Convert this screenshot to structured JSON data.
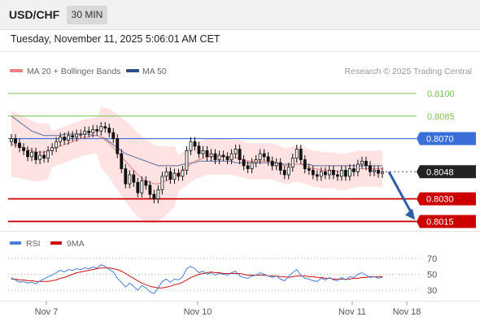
{
  "header": {
    "symbol": "USD/CHF",
    "timeframe": "30 MIN"
  },
  "datetime": "Tuesday, November 11, 2025 5:06:01 AM CET",
  "legend": {
    "ma20_label": "MA 20 + Bollinger Bands",
    "ma50_label": "MA 50",
    "copyright": "Research © 2025 Trading Central"
  },
  "rsi_legend": {
    "rsi_label": "RSI",
    "ma9_label": "9MA"
  },
  "colors": {
    "candle": "#111111",
    "ma20": "#f08080",
    "band_fill": "#ffd8d8",
    "ma50": "#5a6e9e",
    "resistance": "#7cc251",
    "pivot": "#3a6fd8",
    "support": "#cc0000",
    "arrow": "#2d5ea8",
    "rsi": "#4a7fd6",
    "rsi_ma": "#cc1111"
  },
  "chart_data": [
    {
      "type": "candlestick",
      "title": "USD/CHF",
      "timeframe": "30 MIN",
      "x_ticks": [
        "Nov 7",
        "Nov 10",
        "Nov 11",
        "Nov 18"
      ],
      "ylim": [
        0.8012,
        0.8107
      ],
      "last_price": 0.8048,
      "levels": [
        {
          "label": "0.8100",
          "value": 0.81,
          "kind": "resistance"
        },
        {
          "label": "0.8085",
          "value": 0.8085,
          "kind": "resistance"
        },
        {
          "label": "0.8070",
          "value": 0.807,
          "kind": "pivot"
        },
        {
          "label": "0.8048",
          "value": 0.8048,
          "kind": "last"
        },
        {
          "label": "0.8030",
          "value": 0.803,
          "kind": "support"
        },
        {
          "label": "0.8015",
          "value": 0.8015,
          "kind": "support"
        }
      ],
      "close": [
        0.807,
        0.8067,
        0.8064,
        0.8062,
        0.8058,
        0.8061,
        0.8056,
        0.8059,
        0.8057,
        0.8062,
        0.8064,
        0.8068,
        0.8071,
        0.8069,
        0.8072,
        0.8071,
        0.8073,
        0.8073,
        0.8075,
        0.8074,
        0.8076,
        0.8075,
        0.8078,
        0.8077,
        0.8074,
        0.807,
        0.806,
        0.805,
        0.804,
        0.8046,
        0.8041,
        0.8034,
        0.8042,
        0.8039,
        0.8033,
        0.803,
        0.8036,
        0.8045,
        0.8048,
        0.8043,
        0.8047,
        0.8045,
        0.8049,
        0.8062,
        0.8068,
        0.8065,
        0.806,
        0.8062,
        0.8058,
        0.806,
        0.8056,
        0.8059,
        0.8058,
        0.8056,
        0.806,
        0.8063,
        0.8056,
        0.8052,
        0.805,
        0.8054,
        0.8056,
        0.806,
        0.8058,
        0.8055,
        0.8052,
        0.8054,
        0.8049,
        0.8046,
        0.8051,
        0.8057,
        0.8063,
        0.8056,
        0.805,
        0.8049,
        0.8046,
        0.8045,
        0.8048,
        0.8046,
        0.8049,
        0.8046,
        0.8045,
        0.8049,
        0.8045,
        0.805,
        0.8048,
        0.8053,
        0.8055,
        0.8052,
        0.8048,
        0.8049,
        0.8047,
        0.8048
      ],
      "open": [
        0.8068,
        0.807,
        0.8067,
        0.8064,
        0.8062,
        0.8058,
        0.8061,
        0.8056,
        0.8059,
        0.8057,
        0.8062,
        0.8064,
        0.8068,
        0.8071,
        0.8069,
        0.8072,
        0.8071,
        0.8073,
        0.8073,
        0.8075,
        0.8074,
        0.8076,
        0.8075,
        0.8078,
        0.8077,
        0.8074,
        0.807,
        0.806,
        0.805,
        0.804,
        0.8046,
        0.8041,
        0.8034,
        0.8042,
        0.8039,
        0.8033,
        0.803,
        0.8036,
        0.8045,
        0.8048,
        0.8043,
        0.8047,
        0.8045,
        0.8049,
        0.8062,
        0.8068,
        0.8065,
        0.806,
        0.8062,
        0.8058,
        0.806,
        0.8056,
        0.8059,
        0.8058,
        0.8056,
        0.806,
        0.8063,
        0.8056,
        0.8052,
        0.805,
        0.8054,
        0.8056,
        0.806,
        0.8058,
        0.8055,
        0.8052,
        0.8054,
        0.8049,
        0.8046,
        0.8051,
        0.8057,
        0.8063,
        0.8056,
        0.805,
        0.8049,
        0.8046,
        0.8045,
        0.8048,
        0.8046,
        0.8049,
        0.8046,
        0.8045,
        0.8049,
        0.8045,
        0.805,
        0.8048,
        0.8053,
        0.8055,
        0.8052,
        0.8048,
        0.8049,
        0.8047
      ],
      "ma20": [
        0.8066,
        0.8066,
        0.8065,
        0.8064,
        0.8063,
        0.8062,
        0.8061,
        0.8061,
        0.8061,
        0.8062,
        0.8063,
        0.8064,
        0.8065,
        0.8066,
        0.8067,
        0.8068,
        0.8069,
        0.807,
        0.8071,
        0.8071,
        0.8072,
        0.8072,
        0.8071,
        0.8069,
        0.8067,
        0.8064,
        0.8061,
        0.8058,
        0.8055,
        0.8052,
        0.8049,
        0.8046,
        0.8044,
        0.8042,
        0.8041,
        0.804,
        0.804,
        0.8041,
        0.8042,
        0.8043,
        0.8045,
        0.8047,
        0.8049,
        0.8051,
        0.8053,
        0.8055,
        0.8056,
        0.8057,
        0.8058,
        0.8058,
        0.8058,
        0.8058,
        0.8058,
        0.8058,
        0.8058,
        0.8057,
        0.8057,
        0.8056,
        0.8055,
        0.8055,
        0.8055,
        0.8055,
        0.8055,
        0.8055,
        0.8055,
        0.8054,
        0.8053,
        0.8052,
        0.8052,
        0.8053,
        0.8053,
        0.8053,
        0.8052,
        0.8051,
        0.805,
        0.805,
        0.8049,
        0.8049,
        0.8049,
        0.8049,
        0.8048,
        0.8048,
        0.8048,
        0.8049,
        0.8049,
        0.805,
        0.805,
        0.805,
        0.805,
        0.805,
        0.805,
        0.805
      ],
      "ma50": [
        0.8085,
        0.8083,
        0.8081,
        0.8079,
        0.8077,
        0.8075,
        0.8074,
        0.8073,
        0.8072,
        0.8072,
        0.8072,
        0.8072,
        0.8072,
        0.8073,
        0.8073,
        0.8073,
        0.8073,
        0.8073,
        0.8073,
        0.8073,
        0.8072,
        0.8072,
        0.8071,
        0.807,
        0.8068,
        0.8066,
        0.8064,
        0.8062,
        0.806,
        0.8059,
        0.8058,
        0.8057,
        0.8056,
        0.8055,
        0.8054,
        0.8053,
        0.8052,
        0.8052,
        0.8052,
        0.8052,
        0.8052,
        0.8052,
        0.8053,
        0.8053,
        0.8054,
        0.8054,
        0.8055,
        0.8055,
        0.8055,
        0.8055,
        0.8055,
        0.8055,
        0.8055,
        0.8055,
        0.8055,
        0.8054,
        0.8054,
        0.8054,
        0.8054,
        0.8054,
        0.8054,
        0.8054,
        0.8054,
        0.8054,
        0.8054,
        0.8054,
        0.8053,
        0.8053,
        0.8053,
        0.8053,
        0.8053,
        0.8053,
        0.8053,
        0.8053,
        0.8052,
        0.8052,
        0.8052,
        0.8052,
        0.8052,
        0.8052,
        0.8052,
        0.8052,
        0.8052,
        0.8052,
        0.8052,
        0.8052,
        0.8052,
        0.8052,
        0.8052,
        0.8052,
        0.8052,
        0.8052
      ],
      "forecast": [
        0.8048,
        0.8015
      ]
    },
    {
      "type": "line",
      "title": "RSI",
      "ylim": [
        22,
        78
      ],
      "y_ticks": [
        "70",
        "50",
        "30"
      ],
      "series": [
        {
          "name": "RSI",
          "values": [
            46,
            43,
            40,
            41,
            39,
            40,
            38,
            42,
            44,
            47,
            49,
            52,
            55,
            53,
            56,
            55,
            57,
            56,
            58,
            57,
            59,
            58,
            62,
            60,
            56,
            53,
            45,
            40,
            34,
            39,
            35,
            30,
            36,
            33,
            28,
            26,
            33,
            41,
            44,
            40,
            44,
            43,
            47,
            57,
            60,
            57,
            52,
            54,
            50,
            52,
            49,
            51,
            50,
            49,
            52,
            54,
            48,
            46,
            45,
            48,
            49,
            52,
            50,
            48,
            46,
            48,
            44,
            42,
            47,
            52,
            56,
            49,
            45,
            44,
            42,
            41,
            45,
            43,
            46,
            43,
            42,
            46,
            43,
            47,
            46,
            50,
            52,
            49,
            46,
            47,
            45,
            46
          ]
        },
        {
          "name": "9MA",
          "values": [
            44,
            44,
            43,
            43,
            42,
            42,
            41,
            41,
            41,
            41,
            42,
            43,
            45,
            46,
            48,
            50,
            52,
            53,
            54,
            55,
            56,
            57,
            58,
            58,
            58,
            57,
            56,
            54,
            51,
            48,
            45,
            42,
            39,
            37,
            35,
            34,
            33,
            33,
            34,
            35,
            37,
            38,
            40,
            43,
            46,
            48,
            50,
            51,
            52,
            53,
            52,
            52,
            51,
            51,
            51,
            51,
            51,
            50,
            49,
            49,
            49,
            49,
            49,
            48,
            48,
            48,
            47,
            47,
            46,
            47,
            48,
            48,
            48,
            47,
            47,
            46,
            46,
            45,
            45,
            44,
            44,
            44,
            44,
            44,
            45,
            45,
            46,
            46,
            47,
            47,
            47,
            47
          ]
        }
      ]
    }
  ]
}
